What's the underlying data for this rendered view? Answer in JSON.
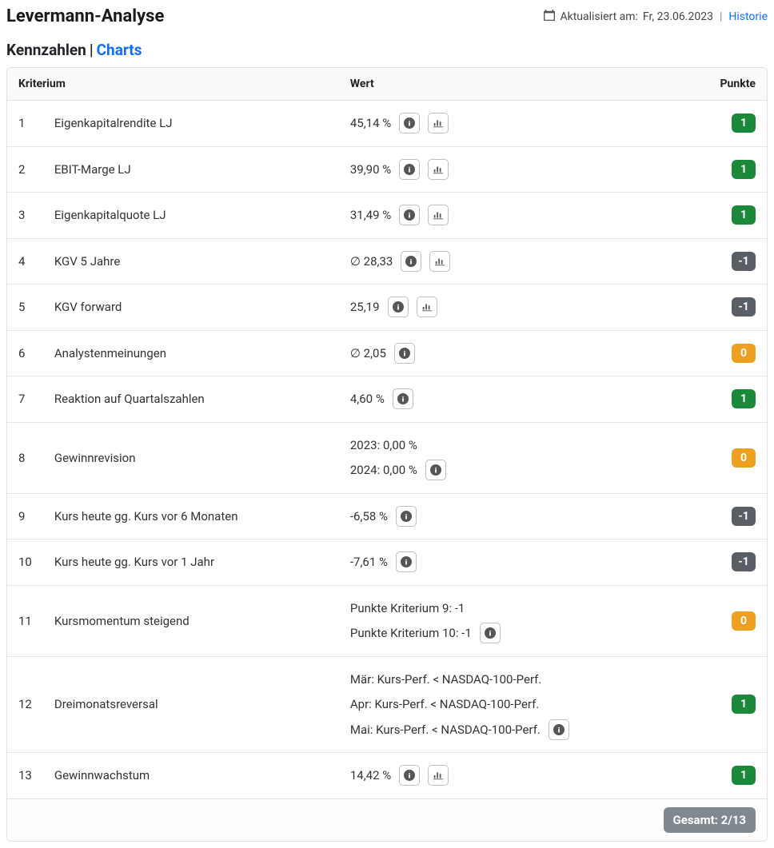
{
  "header": {
    "title": "Levermann-Analyse",
    "updated_label": "Aktualisiert am:",
    "updated_date": "Fr, 23.06.2023",
    "history_label": "Historie"
  },
  "tabs": {
    "active": "Kennzahlen",
    "inactive": "Charts"
  },
  "table": {
    "columns": {
      "criterion": "Kriterium",
      "value": "Wert",
      "points": "Punkte"
    },
    "rows": [
      {
        "n": "1",
        "name": "Eigenkapitalrendite LJ",
        "values": [
          "45,14 %"
        ],
        "info": true,
        "chart": true,
        "points": "1",
        "badge": "pos"
      },
      {
        "n": "2",
        "name": "EBIT-Marge LJ",
        "values": [
          "39,90 %"
        ],
        "info": true,
        "chart": true,
        "points": "1",
        "badge": "pos"
      },
      {
        "n": "3",
        "name": "Eigenkapitalquote LJ",
        "values": [
          "31,49 %"
        ],
        "info": true,
        "chart": true,
        "points": "1",
        "badge": "pos"
      },
      {
        "n": "4",
        "name": "KGV 5 Jahre",
        "values": [
          "∅ 28,33"
        ],
        "info": true,
        "chart": true,
        "points": "-1",
        "badge": "neg"
      },
      {
        "n": "5",
        "name": "KGV forward",
        "values": [
          "25,19"
        ],
        "info": true,
        "chart": true,
        "points": "-1",
        "badge": "neg"
      },
      {
        "n": "6",
        "name": "Analystenmeinungen",
        "values": [
          "∅ 2,05"
        ],
        "info": true,
        "chart": false,
        "points": "0",
        "badge": "neu"
      },
      {
        "n": "7",
        "name": "Reaktion auf Quartalszahlen",
        "values": [
          "4,60 %"
        ],
        "info": true,
        "chart": false,
        "points": "1",
        "badge": "pos"
      },
      {
        "n": "8",
        "name": "Gewinnrevision",
        "values": [
          "2023: 0,00 %",
          "2024: 0,00 %"
        ],
        "info": true,
        "chart": false,
        "points": "0",
        "badge": "neu"
      },
      {
        "n": "9",
        "name": "Kurs heute gg. Kurs vor 6 Monaten",
        "values": [
          "-6,58 %"
        ],
        "info": true,
        "chart": false,
        "points": "-1",
        "badge": "neg"
      },
      {
        "n": "10",
        "name": "Kurs heute gg. Kurs vor 1 Jahr",
        "values": [
          "-7,61 %"
        ],
        "info": true,
        "chart": false,
        "points": "-1",
        "badge": "neg"
      },
      {
        "n": "11",
        "name": "Kursmomentum steigend",
        "values": [
          "Punkte Kriterium 9: -1",
          "Punkte Kriterium 10: -1"
        ],
        "info": true,
        "chart": false,
        "points": "0",
        "badge": "neu"
      },
      {
        "n": "12",
        "name": "Dreimonatsreversal",
        "values": [
          "Mär: Kurs-Perf. < NASDAQ-100-Perf.",
          "Apr: Kurs-Perf. < NASDAQ-100-Perf.",
          "Mai: Kurs-Perf. < NASDAQ-100-Perf."
        ],
        "info": true,
        "chart": false,
        "points": "1",
        "badge": "pos"
      },
      {
        "n": "13",
        "name": "Gewinnwachstum",
        "values": [
          "14,42 %"
        ],
        "info": true,
        "chart": true,
        "points": "1",
        "badge": "pos"
      }
    ],
    "total_label": "Gesamt: 2/13"
  },
  "colors": {
    "positive": "#1a8a3a",
    "neutral": "#f0a020",
    "negative": "#5a5f66",
    "link": "#0d6efd",
    "border": "#dee2e6"
  }
}
